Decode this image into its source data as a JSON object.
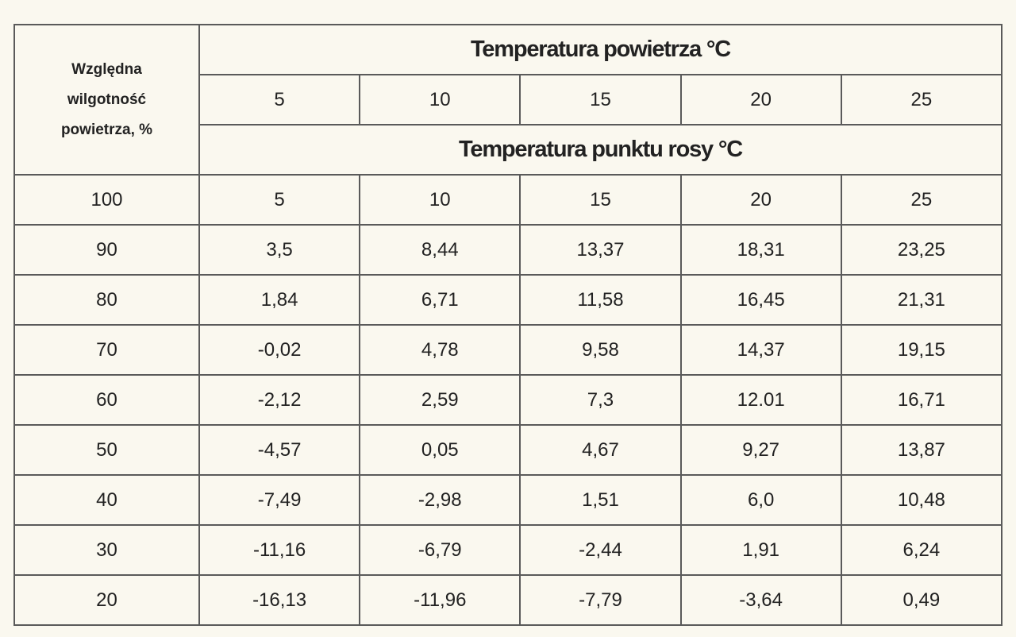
{
  "table": {
    "corner": "Względna wilgotność powietrza, %",
    "air_temp_title": "Temperatura powietrza  °C",
    "air_temps": [
      "5",
      "10",
      "15",
      "20",
      "25"
    ],
    "dew_title": "Temperatura punktu rosy °C",
    "rows": [
      [
        "100",
        "5",
        "10",
        "15",
        "20",
        "25"
      ],
      [
        "90",
        "3,5",
        "8,44",
        "13,37",
        "18,31",
        "23,25"
      ],
      [
        "80",
        "1,84",
        "6,71",
        "11,58",
        "16,45",
        "21,31"
      ],
      [
        "70",
        "-0,02",
        "4,78",
        "9,58",
        "14,37",
        "19,15"
      ],
      [
        "60",
        "-2,12",
        "2,59",
        "7,3",
        "12.01",
        "16,71"
      ],
      [
        "50",
        "-4,57",
        "0,05",
        "4,67",
        "9,27",
        "13,87"
      ],
      [
        "40",
        "-7,49",
        "-2,98",
        "1,51",
        "6,0",
        "10,48"
      ],
      [
        "30",
        "-11,16",
        "-6,79",
        "-2,44",
        "1,91",
        "6,24"
      ],
      [
        "20",
        "-16,13",
        "-11,96",
        "-7,79",
        "-3,64",
        "0,49"
      ]
    ]
  }
}
